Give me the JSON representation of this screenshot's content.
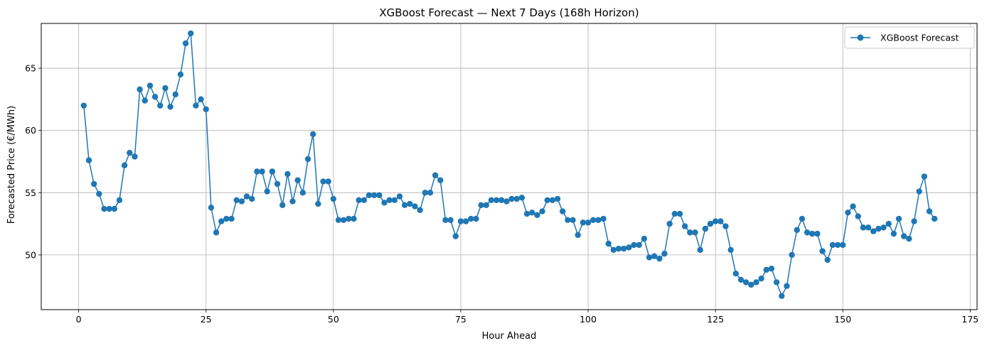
{
  "chart_data": {
    "type": "line",
    "title": "XGBoost Forecast — Next 7 Days (168h Horizon)",
    "xlabel": "Hour Ahead",
    "ylabel": "Forecasted Price (€/MWh)",
    "xlim": [
      -7.35,
      176.35
    ],
    "ylim": [
      45.6,
      68.6
    ],
    "xticks": [
      0,
      25,
      50,
      75,
      100,
      125,
      150,
      175
    ],
    "yticks": [
      50,
      55,
      60,
      65
    ],
    "grid": true,
    "legend_position": "top-right",
    "color": "#1f77b4",
    "series": [
      {
        "name": "XGBoost Forecast",
        "marker": "circle",
        "x": [
          1,
          2,
          3,
          4,
          5,
          6,
          7,
          8,
          9,
          10,
          11,
          12,
          13,
          14,
          15,
          16,
          17,
          18,
          19,
          20,
          21,
          22,
          23,
          24,
          25,
          26,
          27,
          28,
          29,
          30,
          31,
          32,
          33,
          34,
          35,
          36,
          37,
          38,
          39,
          40,
          41,
          42,
          43,
          44,
          45,
          46,
          47,
          48,
          49,
          50,
          51,
          52,
          53,
          54,
          55,
          56,
          57,
          58,
          59,
          60,
          61,
          62,
          63,
          64,
          65,
          66,
          67,
          68,
          69,
          70,
          71,
          72,
          73,
          74,
          75,
          76,
          77,
          78,
          79,
          80,
          81,
          82,
          83,
          84,
          85,
          86,
          87,
          88,
          89,
          90,
          91,
          92,
          93,
          94,
          95,
          96,
          97,
          98,
          99,
          100,
          101,
          102,
          103,
          104,
          105,
          106,
          107,
          108,
          109,
          110,
          111,
          112,
          113,
          114,
          115,
          116,
          117,
          118,
          119,
          120,
          121,
          122,
          123,
          124,
          125,
          126,
          127,
          128,
          129,
          130,
          131,
          132,
          133,
          134,
          135,
          136,
          137,
          138,
          139,
          140,
          141,
          142,
          143,
          144,
          145,
          146,
          147,
          148,
          149,
          150,
          151,
          152,
          153,
          154,
          155,
          156,
          157,
          158,
          159,
          160,
          161,
          162,
          163,
          164,
          165,
          166,
          167,
          168
        ],
        "values": [
          62.0,
          57.6,
          55.7,
          54.9,
          53.7,
          53.7,
          53.7,
          54.4,
          57.2,
          58.2,
          57.9,
          63.3,
          62.4,
          63.6,
          62.7,
          62.0,
          63.4,
          61.9,
          62.9,
          64.5,
          67.0,
          67.8,
          62.0,
          62.5,
          61.7,
          53.8,
          51.8,
          52.7,
          52.9,
          52.9,
          54.4,
          54.3,
          54.7,
          54.5,
          56.7,
          56.7,
          55.1,
          56.7,
          55.7,
          54.0,
          56.5,
          54.3,
          56.0,
          55.0,
          57.7,
          59.7,
          54.1,
          55.9,
          55.9,
          54.5,
          52.8,
          52.8,
          52.9,
          52.9,
          54.4,
          54.4,
          54.8,
          54.8,
          54.8,
          54.2,
          54.4,
          54.4,
          54.7,
          54.0,
          54.1,
          53.9,
          53.6,
          55.0,
          55.0,
          56.4,
          56.0,
          52.8,
          52.8,
          51.5,
          52.7,
          52.7,
          52.9,
          52.9,
          54.0,
          54.0,
          54.4,
          54.4,
          54.4,
          54.3,
          54.5,
          54.5,
          54.6,
          53.3,
          53.4,
          53.2,
          53.5,
          54.4,
          54.4,
          54.5,
          53.5,
          52.8,
          52.8,
          51.6,
          52.6,
          52.6,
          52.8,
          52.8,
          52.9,
          50.9,
          50.4,
          50.5,
          50.5,
          50.6,
          50.8,
          50.8,
          51.3,
          49.8,
          49.9,
          49.7,
          50.1,
          52.5,
          53.3,
          53.3,
          52.3,
          51.8,
          51.8,
          50.4,
          52.1,
          52.5,
          52.7,
          52.7,
          52.3,
          50.4,
          48.5,
          48.0,
          47.8,
          47.6,
          47.8,
          48.1,
          48.8,
          48.9,
          47.8,
          46.7,
          47.5,
          50.0,
          52.0,
          52.9,
          51.8,
          51.7,
          51.7,
          50.3,
          49.6,
          50.8,
          50.8,
          50.8,
          53.4,
          53.9,
          53.1,
          52.2,
          52.2,
          51.9,
          52.1,
          52.2,
          52.5,
          51.7,
          52.9,
          51.5,
          51.3,
          52.7,
          55.1,
          56.3,
          53.5,
          52.9
        ]
      }
    ]
  }
}
